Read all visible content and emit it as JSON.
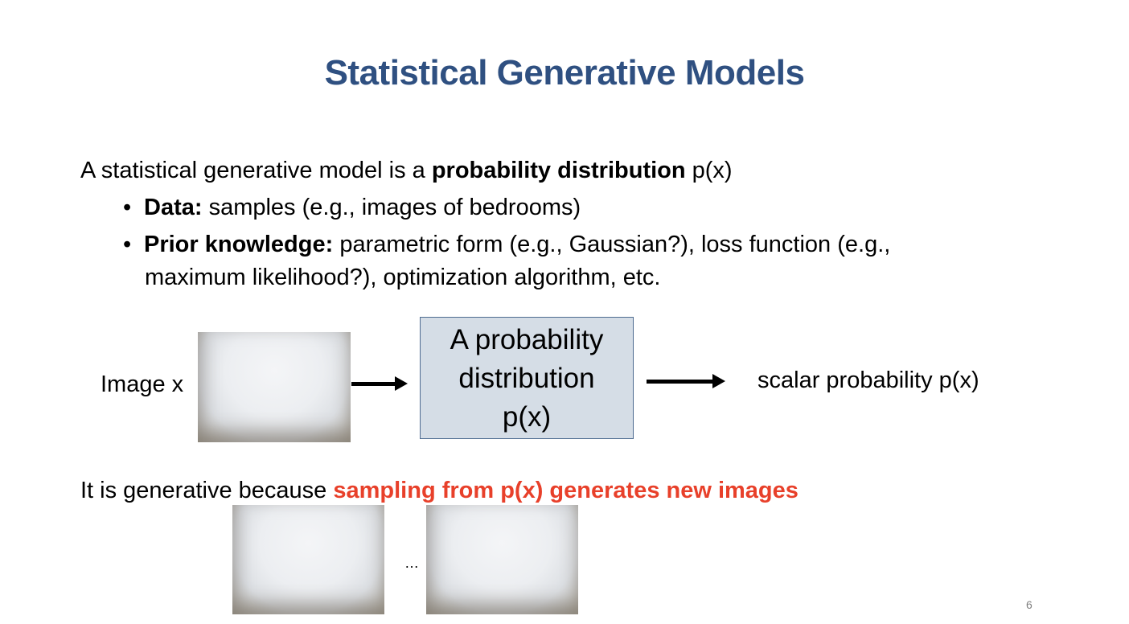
{
  "slide": {
    "title": "Statistical Generative Models",
    "intro": {
      "prefix": "A statistical generative model is a ",
      "emphasis": "probability distribution",
      "suffix": " p(x)"
    },
    "bullets": [
      {
        "label": "Data:",
        "text": " samples (e.g., images of bedrooms)"
      },
      {
        "label": "Prior knowledge:",
        "text": " parametric form (e.g., Gaussian?), loss function (e.g.,",
        "continuation": "maximum likelihood?), optimization algorithm, etc."
      }
    ],
    "diagram": {
      "input_label": "Image x",
      "box_lines": [
        "A probability",
        "distribution",
        "p(x)"
      ],
      "output_label": "scalar probability p(x)"
    },
    "generative": {
      "prefix": "It is generative because ",
      "highlight": "sampling from p(x) generates new images",
      "highlight_color": "#e8402a"
    },
    "ellipsis": "…",
    "page_number": "6",
    "title_color": "#2f5081"
  }
}
